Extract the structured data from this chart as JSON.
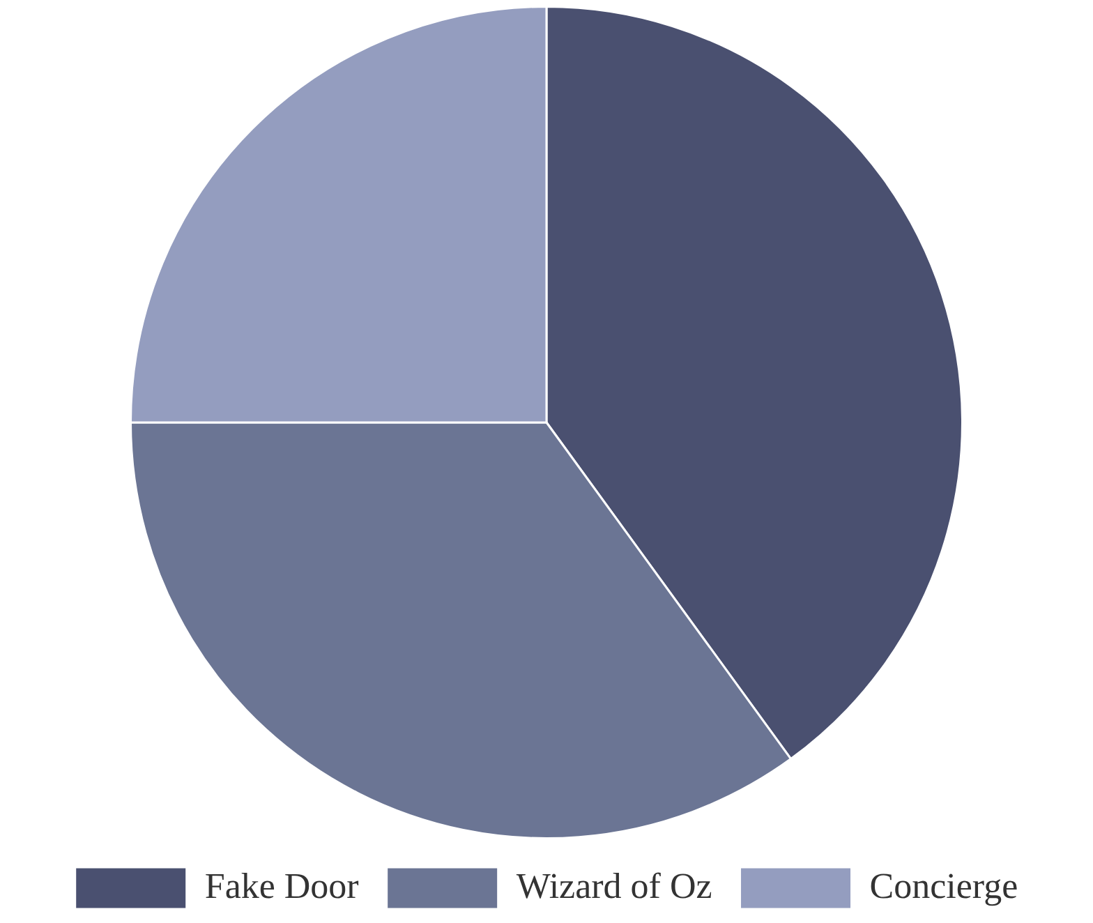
{
  "chart_data": {
    "type": "pie",
    "categories": [
      "Fake Door",
      "Wizard of Oz",
      "Concierge"
    ],
    "values": [
      40,
      35,
      25
    ],
    "colors": [
      "#4a5070",
      "#6b7594",
      "#949dbf"
    ],
    "legend": "bottom"
  }
}
